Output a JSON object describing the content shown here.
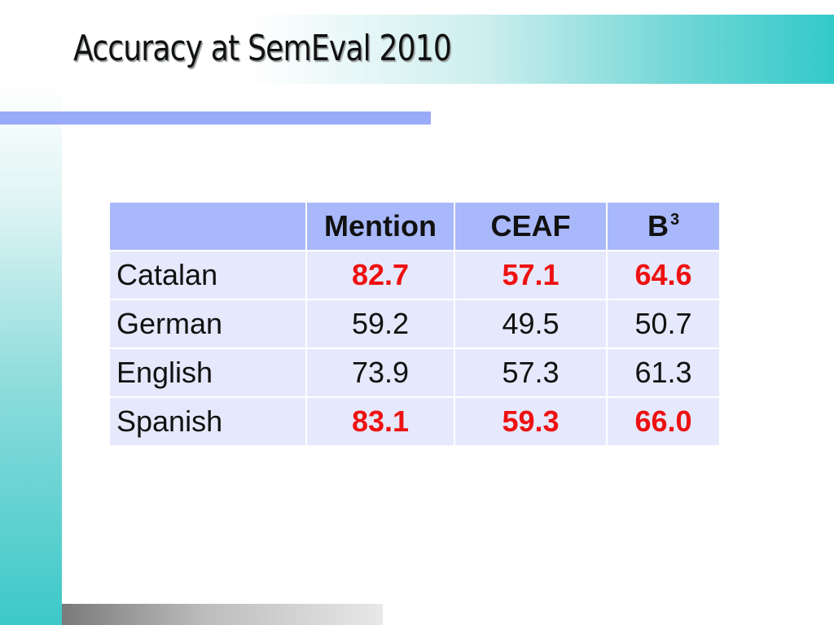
{
  "slide": {
    "title": "Accuracy at SemEval 2010"
  },
  "table": {
    "headers": [
      "",
      "Mention",
      "CEAF",
      "B"
    ],
    "header_superscript": "3",
    "rows": [
      {
        "language": "Catalan",
        "mention": "82.7",
        "ceaf": "57.1",
        "b3": "64.6",
        "highlight": true
      },
      {
        "language": "German",
        "mention": "59.2",
        "ceaf": "49.5",
        "b3": "50.7",
        "highlight": false
      },
      {
        "language": "English",
        "mention": "73.9",
        "ceaf": "57.3",
        "b3": "61.3",
        "highlight": false
      },
      {
        "language": "Spanish",
        "mention": "83.1",
        "ceaf": "59.3",
        "b3": "66.0",
        "highlight": true
      }
    ]
  },
  "colors": {
    "highlight_text": "#ee1111",
    "header_fill": "#a9b8fa",
    "cell_fill": "#e6e8fb",
    "accent_teal": "#33c9c9",
    "accent_blue": "#99aaf8"
  }
}
